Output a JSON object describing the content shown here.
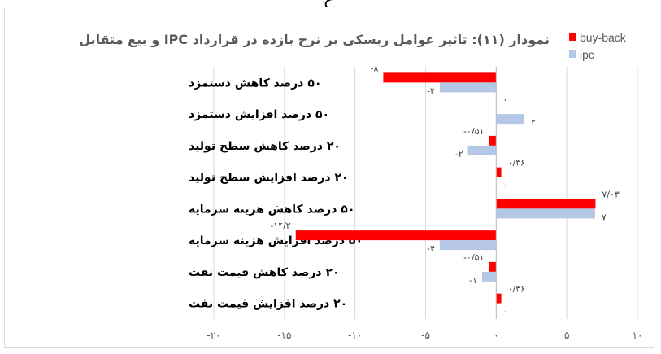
{
  "page_fragment": "ع",
  "chart_data": {
    "type": "bar",
    "orientation": "horizontal",
    "title": "نمودار (۱۱): تاثیر عوامل ریسکی بر نرخ بازده در قرارداد IPC و بیع متقابل",
    "categories": [
      "۵۰ درصد کاهش دستمزد",
      "۵۰ درصد افزایش دستمزد",
      "۲۰ درصد کاهش سطح تولید",
      "۲۰ درصد افزایش سطح تولید",
      "۵۰ درصد کاهش هزینه سرمایه",
      "۵۰ درصد افزایش هزینه سرمایه",
      "۲۰ درصد کاهش قیمت نفت",
      "۲۰ درصد افزایش قیمت نفت"
    ],
    "series": [
      {
        "name": "buy-back",
        "color": "#ff0000",
        "values": [
          -8,
          0,
          -0.51,
          0.36,
          7.03,
          -14.2,
          -0.51,
          0.36
        ],
        "labels": [
          "-۸",
          "۰",
          "-۰/۵۱",
          "۰/۳۶",
          "۷/۰۳",
          "-۱۴/۲",
          "-۰/۵۱",
          "۰/۳۶"
        ]
      },
      {
        "name": "ipc",
        "color": "#b4c7e7",
        "values": [
          -4,
          2,
          -2,
          0,
          7,
          -4,
          -1,
          0
        ],
        "labels": [
          "-۴",
          "۲",
          "-۲",
          "۰",
          "۷",
          "-۴",
          "-۱",
          "۰"
        ]
      }
    ],
    "xlim": [
      -20,
      10
    ],
    "xticks": [
      -20,
      -15,
      -10,
      -5,
      0,
      5,
      10
    ],
    "xtick_labels": [
      "-۲۰",
      "-۱۵",
      "-۱۰",
      "-۵",
      "۰",
      "۵",
      "۱۰"
    ],
    "xlabel": "",
    "ylabel": "",
    "grid": true,
    "legend_position": "top-right"
  }
}
